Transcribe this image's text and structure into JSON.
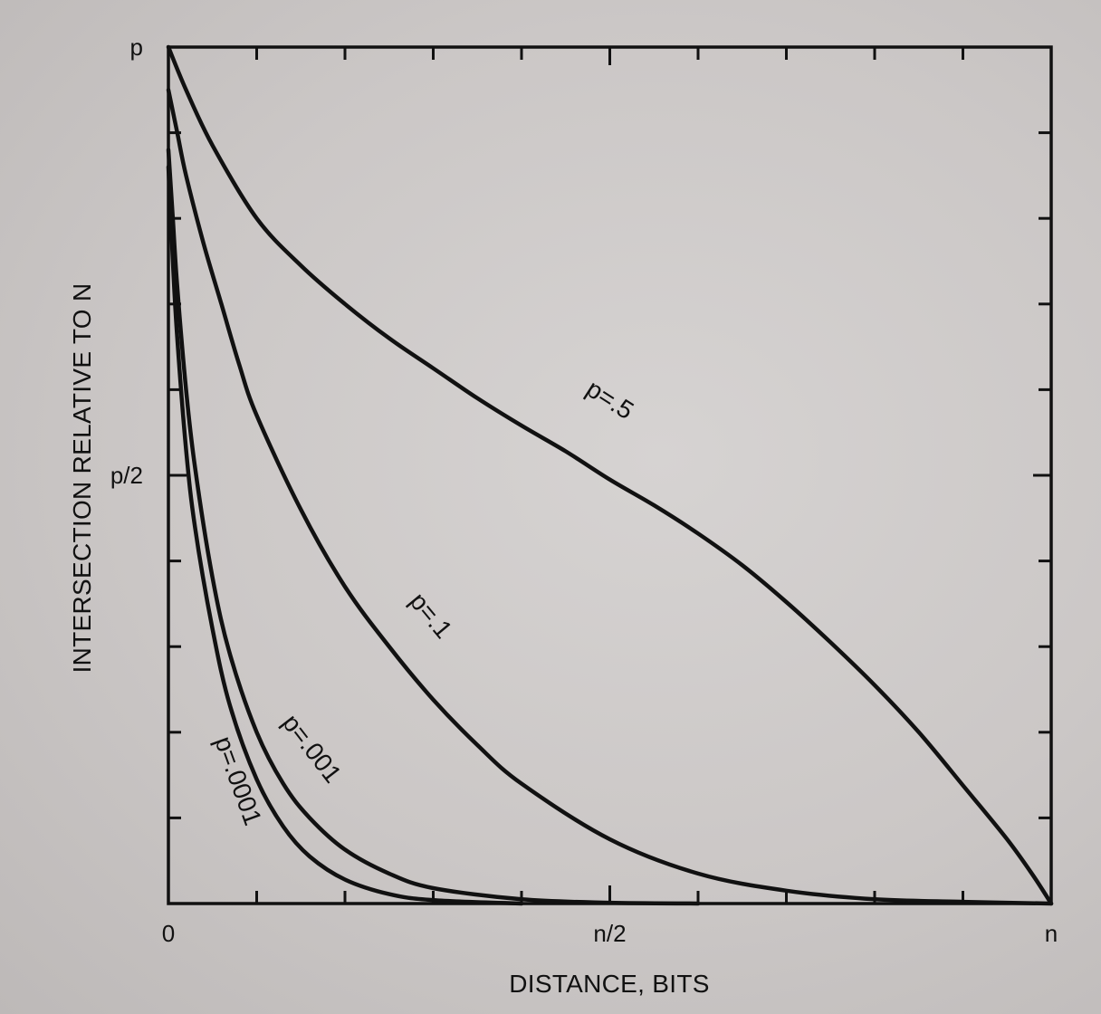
{
  "chart_data": {
    "type": "line",
    "xlabel": "DISTANCE, BITS",
    "ylabel": "INTERSECTION RELATIVE TO N",
    "xlim": [
      0,
      1
    ],
    "ylim": [
      0,
      1
    ],
    "x_ticks": [
      {
        "value": 0,
        "label": "0"
      },
      {
        "value": 0.5,
        "label": "n/2"
      },
      {
        "value": 1,
        "label": "n"
      }
    ],
    "y_ticks": [
      {
        "value": 0,
        "label": ""
      },
      {
        "value": 0.5,
        "label": "p/2"
      },
      {
        "value": 1,
        "label": "p"
      }
    ],
    "minor_ticks": 10,
    "grid": false,
    "series": [
      {
        "name": "p=.5",
        "x": [
          0,
          0.02,
          0.05,
          0.1,
          0.15,
          0.2,
          0.25,
          0.3,
          0.35,
          0.4,
          0.45,
          0.5,
          0.55,
          0.6,
          0.65,
          0.7,
          0.75,
          0.8,
          0.85,
          0.9,
          0.95,
          0.98,
          1.0
        ],
        "y": [
          1.0,
          0.95,
          0.885,
          0.8,
          0.745,
          0.7,
          0.66,
          0.625,
          0.59,
          0.558,
          0.528,
          0.495,
          0.465,
          0.432,
          0.395,
          0.352,
          0.305,
          0.255,
          0.2,
          0.138,
          0.075,
          0.032,
          0.0
        ],
        "label_position": {
          "x": 0.495,
          "y": 0.58
        }
      },
      {
        "name": "p=.1",
        "x": [
          0,
          0.01,
          0.02,
          0.04,
          0.06,
          0.08,
          0.1,
          0.15,
          0.2,
          0.25,
          0.3,
          0.35,
          0.4,
          0.5,
          0.6,
          0.7,
          0.8,
          0.9,
          1.0
        ],
        "y": [
          0.95,
          0.9,
          0.85,
          0.77,
          0.7,
          0.63,
          0.57,
          0.46,
          0.37,
          0.3,
          0.238,
          0.185,
          0.14,
          0.075,
          0.035,
          0.015,
          0.005,
          0.002,
          0.0
        ],
        "label_position": {
          "x": 0.29,
          "y": 0.33
        }
      },
      {
        "name": "p=.001",
        "x": [
          0,
          0.005,
          0.01,
          0.02,
          0.03,
          0.05,
          0.07,
          0.1,
          0.13,
          0.16,
          0.2,
          0.25,
          0.3,
          0.4,
          0.5,
          0.6
        ],
        "y": [
          0.88,
          0.8,
          0.72,
          0.6,
          0.51,
          0.38,
          0.29,
          0.2,
          0.14,
          0.1,
          0.063,
          0.035,
          0.018,
          0.005,
          0.001,
          0.0
        ],
        "label_position": {
          "x": 0.155,
          "y": 0.175
        }
      },
      {
        "name": "p=.0001",
        "x": [
          0,
          0.005,
          0.01,
          0.02,
          0.03,
          0.05,
          0.07,
          0.1,
          0.13,
          0.16,
          0.2,
          0.25,
          0.3,
          0.4
        ],
        "y": [
          0.86,
          0.75,
          0.66,
          0.53,
          0.44,
          0.32,
          0.23,
          0.145,
          0.09,
          0.055,
          0.028,
          0.011,
          0.004,
          0.0
        ],
        "label_position": {
          "x": 0.07,
          "y": 0.14
        }
      }
    ]
  }
}
